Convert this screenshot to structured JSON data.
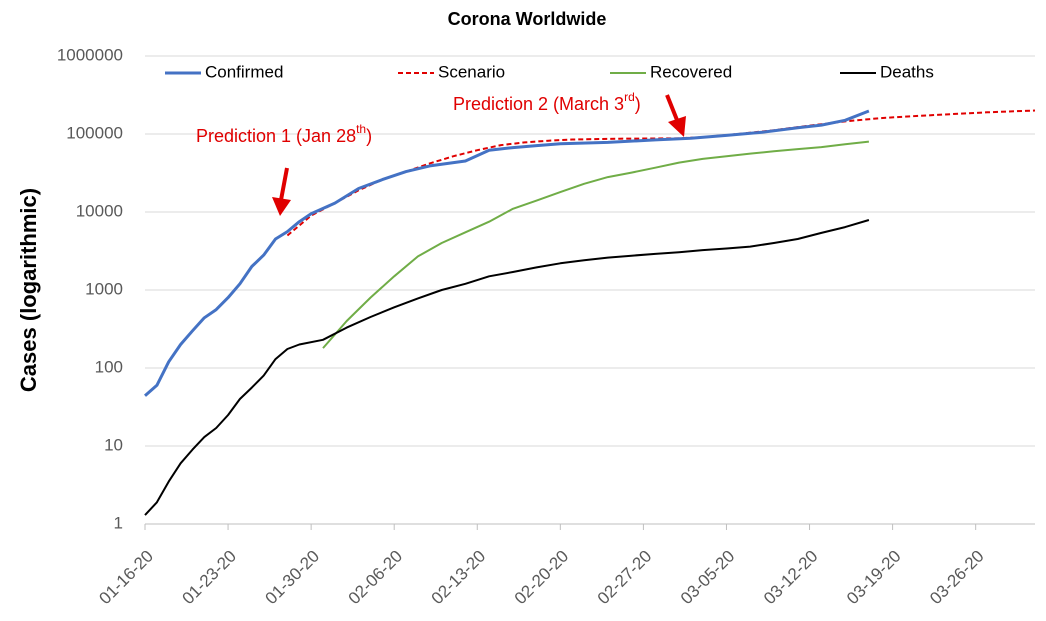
{
  "chart_data": {
    "type": "line",
    "title": "Corona Worldwide",
    "y_label": "Cases (logarithmic)",
    "log_scale": "y",
    "grid": true,
    "legend": "top",
    "ylim": [
      1,
      1000000
    ],
    "yticks": [
      1,
      10,
      100,
      1000,
      10000,
      100000,
      1000000
    ],
    "xlim": [
      "01-16-20",
      "03-31-20"
    ],
    "xticks": [
      "01-16-20",
      "01-23-20",
      "01-30-20",
      "02-06-20",
      "02-13-20",
      "02-20-20",
      "02-27-20",
      "03-05-20",
      "03-12-20",
      "03-19-20",
      "03-26-20"
    ],
    "series": [
      {
        "name": "Confirmed",
        "color": "#4472c4",
        "dashed": false,
        "x": [
          "01-16-20",
          "01-17-20",
          "01-18-20",
          "01-19-20",
          "01-20-20",
          "01-21-20",
          "01-22-20",
          "01-23-20",
          "01-24-20",
          "01-25-20",
          "01-26-20",
          "01-27-20",
          "01-28-20",
          "01-29-20",
          "01-30-20",
          "02-01-20",
          "02-03-20",
          "02-05-20",
          "02-07-20",
          "02-09-20",
          "02-11-20",
          "02-12-20",
          "02-14-20",
          "02-16-20",
          "02-18-20",
          "02-20-20",
          "02-24-20",
          "02-28-20",
          "03-02-20",
          "03-05-20",
          "03-08-20",
          "03-11-20",
          "03-13-20",
          "03-15-20",
          "03-17-20"
        ],
        "values": [
          44,
          60,
          120,
          200,
          300,
          440,
          560,
          800,
          1200,
          2000,
          2800,
          4500,
          5600,
          7500,
          9500,
          13000,
          20000,
          26000,
          33000,
          39000,
          43000,
          45000,
          62000,
          67000,
          71000,
          75000,
          78000,
          84000,
          88000,
          96000,
          105000,
          120000,
          130000,
          150000,
          197000
        ]
      },
      {
        "name": "Scenario",
        "color": "#e00000",
        "dashed": true,
        "x": [
          "01-28-20",
          "01-30-20",
          "02-01-20",
          "02-03-20",
          "02-05-20",
          "02-07-20",
          "02-09-20",
          "02-11-20",
          "02-13-20",
          "02-15-20",
          "02-17-20",
          "02-19-20",
          "02-21-20",
          "02-25-20",
          "03-01-20",
          "03-03-20",
          "03-06-20",
          "03-09-20",
          "03-12-20",
          "03-15-20",
          "03-18-20",
          "03-21-20",
          "03-24-20",
          "03-27-20",
          "03-31-20"
        ],
        "values": [
          5000,
          9000,
          13000,
          19000,
          26000,
          33000,
          42000,
          52000,
          62000,
          72000,
          78000,
          82000,
          85000,
          87000,
          88000,
          91000,
          100000,
          112000,
          128000,
          145000,
          160000,
          170000,
          180000,
          190000,
          200000
        ]
      },
      {
        "name": "Recovered",
        "color": "#70ad47",
        "dashed": false,
        "x": [
          "01-31-20",
          "02-02-20",
          "02-04-20",
          "02-06-20",
          "02-08-20",
          "02-10-20",
          "02-12-20",
          "02-14-20",
          "02-16-20",
          "02-18-20",
          "02-20-20",
          "02-22-20",
          "02-24-20",
          "02-26-20",
          "02-28-20",
          "03-01-20",
          "03-03-20",
          "03-05-20",
          "03-07-20",
          "03-09-20",
          "03-11-20",
          "03-13-20",
          "03-15-20",
          "03-17-20"
        ],
        "values": [
          180,
          400,
          800,
          1500,
          2700,
          4000,
          5500,
          7500,
          11000,
          14000,
          18000,
          23000,
          28000,
          32000,
          37000,
          43000,
          48000,
          52000,
          56000,
          60000,
          64000,
          68000,
          74000,
          80000
        ]
      },
      {
        "name": "Deaths",
        "color": "#000000",
        "dashed": false,
        "x": [
          "01-16-20",
          "01-17-20",
          "01-18-20",
          "01-19-20",
          "01-20-20",
          "01-21-20",
          "01-22-20",
          "01-23-20",
          "01-24-20",
          "01-25-20",
          "01-26-20",
          "01-27-20",
          "01-28-20",
          "01-29-20",
          "01-31-20",
          "02-02-20",
          "02-04-20",
          "02-06-20",
          "02-08-20",
          "02-10-20",
          "02-12-20",
          "02-14-20",
          "02-16-20",
          "02-18-20",
          "02-20-20",
          "02-22-20",
          "02-24-20",
          "02-26-20",
          "02-28-20",
          "03-01-20",
          "03-03-20",
          "03-05-20",
          "03-07-20",
          "03-09-20",
          "03-11-20",
          "03-13-20",
          "03-15-20",
          "03-17-20"
        ],
        "values": [
          1.3,
          1.9,
          3.5,
          6,
          9,
          13,
          17,
          25,
          40,
          56,
          80,
          130,
          175,
          200,
          230,
          330,
          450,
          600,
          780,
          1000,
          1200,
          1500,
          1700,
          1950,
          2200,
          2400,
          2600,
          2750,
          2900,
          3050,
          3250,
          3400,
          3600,
          4000,
          4500,
          5400,
          6400,
          7900
        ]
      }
    ],
    "annotations": [
      {
        "text": "Prediction 1 (Jan 28",
        "sup": "th",
        "end": ")"
      },
      {
        "text": "Prediction 2 (March 3",
        "sup": "rd",
        "end": ")"
      }
    ]
  }
}
